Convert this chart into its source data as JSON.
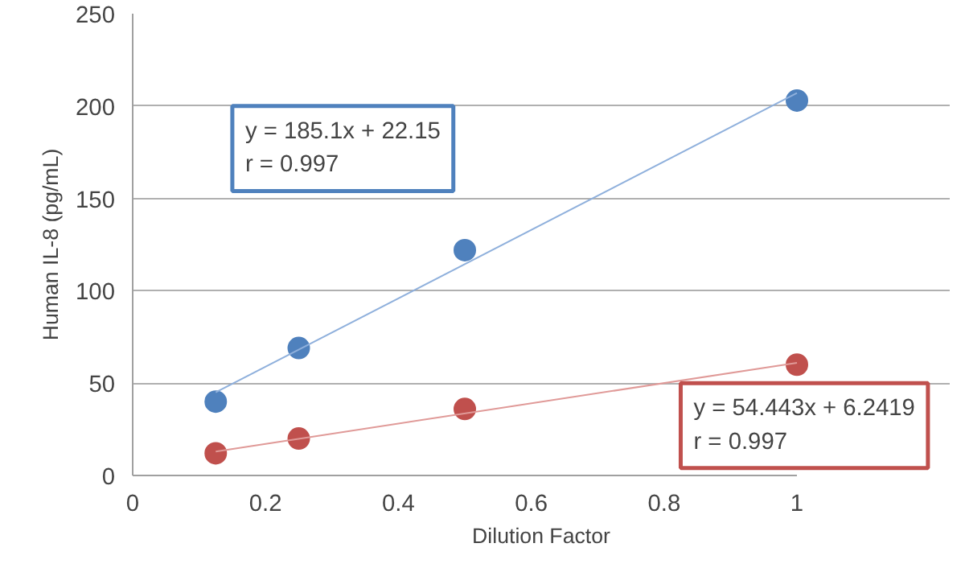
{
  "chart_data": {
    "type": "scatter",
    "xlabel": "Dilution Factor",
    "ylabel": "Human IL-8 (pg/mL)",
    "xlim": [
      0,
      1
    ],
    "xticks": [
      0,
      0.2,
      0.4,
      0.6,
      0.8,
      1
    ],
    "ylim": [
      0,
      250
    ],
    "yticks": [
      0,
      50,
      100,
      150,
      200,
      250
    ],
    "grid": "y",
    "series": [
      {
        "marker": "circle",
        "color": "#4f81bd",
        "x": [
          0.125,
          0.25,
          0.5,
          1
        ],
        "values": [
          40,
          69,
          122,
          203
        ]
      },
      {
        "marker": "circle",
        "color": "#c0504d",
        "x": [
          0.125,
          0.25,
          0.5,
          1
        ],
        "values": [
          12,
          20,
          36,
          60
        ]
      },
      {
        "type": "line",
        "marker": "none",
        "line_style": "solid",
        "color": "#8fb0dc",
        "x": [
          0.125,
          1
        ],
        "values": [
          45,
          207
        ]
      },
      {
        "type": "line",
        "marker": "none",
        "line_style": "solid",
        "color": "#e09a98",
        "x": [
          0.125,
          1
        ],
        "values": [
          13,
          61
        ]
      }
    ],
    "annotations": [
      "y = 185.1x + 22.15\nr = 0.997",
      "y = 54.443x + 6.2419\nr = 0.997"
    ]
  }
}
